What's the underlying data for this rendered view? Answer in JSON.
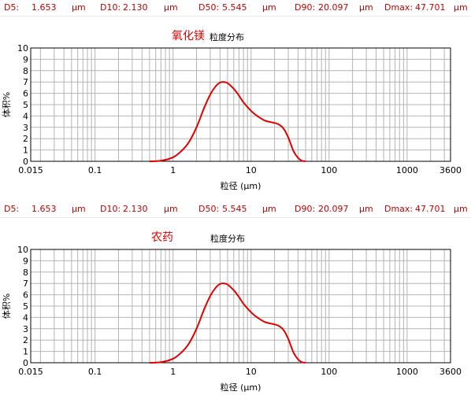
{
  "panels": [
    {
      "stats": {
        "d5_label": "D5:",
        "d5_value": "1.653",
        "d5_unit": "µm",
        "d10_label": "D10:",
        "d10_value": "2.130",
        "d10_unit": "µm",
        "d50_label": "D50:",
        "d50_value": "5.545",
        "d50_unit": "µm",
        "d90_label": "D90:",
        "d90_value": "20.097",
        "d90_unit": "µm",
        "dmax_label": "Dmax:",
        "dmax_value": "47.701",
        "dmax_unit": "µm"
      },
      "material": "氧化镁",
      "title": "粒度分布"
    },
    {
      "stats": {
        "d5_label": "D5:",
        "d5_value": "1.653",
        "d5_unit": "µm",
        "d10_label": "D10:",
        "d10_value": "2.130",
        "d10_unit": "µm",
        "d50_label": "D50:",
        "d50_value": "5.545",
        "d50_unit": "µm",
        "d90_label": "D90:",
        "d90_value": "20.097",
        "d90_unit": "µm",
        "dmax_label": "Dmax:",
        "dmax_value": "47.701",
        "dmax_unit": "µm"
      },
      "material": "农药",
      "title": "粒度分布"
    }
  ],
  "colors": {
    "curve": "#e00000",
    "stats_text": "#c00000",
    "grid": "#b4b4b4"
  },
  "chart_data": [
    {
      "type": "line",
      "title": "粒度分布",
      "xlabel": "粒径 (µm)",
      "ylabel": "体积%",
      "xscale": "log",
      "xlim": [
        0.015,
        3600
      ],
      "ylim": [
        0,
        10
      ],
      "xticks": [
        "0.015",
        "0.1",
        "1",
        "10",
        "100",
        "1000",
        "3600"
      ],
      "yticks": [
        "0",
        "1",
        "2",
        "3",
        "4",
        "5",
        "6",
        "7",
        "8",
        "9",
        "10"
      ],
      "grid": true,
      "series": [
        {
          "x": [
            0.5,
            0.7,
            1.0,
            1.3,
            1.6,
            2.0,
            2.5,
            3.0,
            3.5,
            4.0,
            4.5,
            5.0,
            6.0,
            7.0,
            8.0,
            10.0,
            12.0,
            15.0,
            18.0,
            22.0,
            26.0,
            30.0,
            35.0,
            40.0,
            45.0,
            50.0
          ],
          "y": [
            0,
            0.05,
            0.35,
            0.95,
            1.7,
            3.0,
            4.7,
            5.9,
            6.6,
            6.95,
            7.0,
            6.9,
            6.4,
            5.8,
            5.2,
            4.45,
            4.0,
            3.6,
            3.45,
            3.3,
            2.9,
            2.1,
            0.9,
            0.3,
            0.05,
            0
          ]
        }
      ]
    },
    {
      "type": "line",
      "title": "粒度分布",
      "xlabel": "粒径 (µm)",
      "ylabel": "体积%",
      "xscale": "log",
      "xlim": [
        0.015,
        3600
      ],
      "ylim": [
        0,
        10
      ],
      "xticks": [
        "0.015",
        "0.1",
        "1",
        "10",
        "100",
        "1000",
        "3600"
      ],
      "yticks": [
        "0",
        "1",
        "2",
        "3",
        "4",
        "5",
        "6",
        "7",
        "8",
        "9",
        "10"
      ],
      "grid": true,
      "series": [
        {
          "x": [
            0.5,
            0.7,
            1.0,
            1.3,
            1.6,
            2.0,
            2.5,
            3.0,
            3.5,
            4.0,
            4.5,
            5.0,
            6.0,
            7.0,
            8.0,
            10.0,
            12.0,
            15.0,
            18.0,
            22.0,
            26.0,
            30.0,
            35.0,
            40.0,
            45.0,
            50.0
          ],
          "y": [
            0,
            0.05,
            0.35,
            0.95,
            1.7,
            3.0,
            4.7,
            5.9,
            6.6,
            6.95,
            7.0,
            6.9,
            6.4,
            5.8,
            5.2,
            4.45,
            4.0,
            3.6,
            3.45,
            3.3,
            2.9,
            2.1,
            0.9,
            0.3,
            0.05,
            0
          ]
        }
      ]
    }
  ]
}
